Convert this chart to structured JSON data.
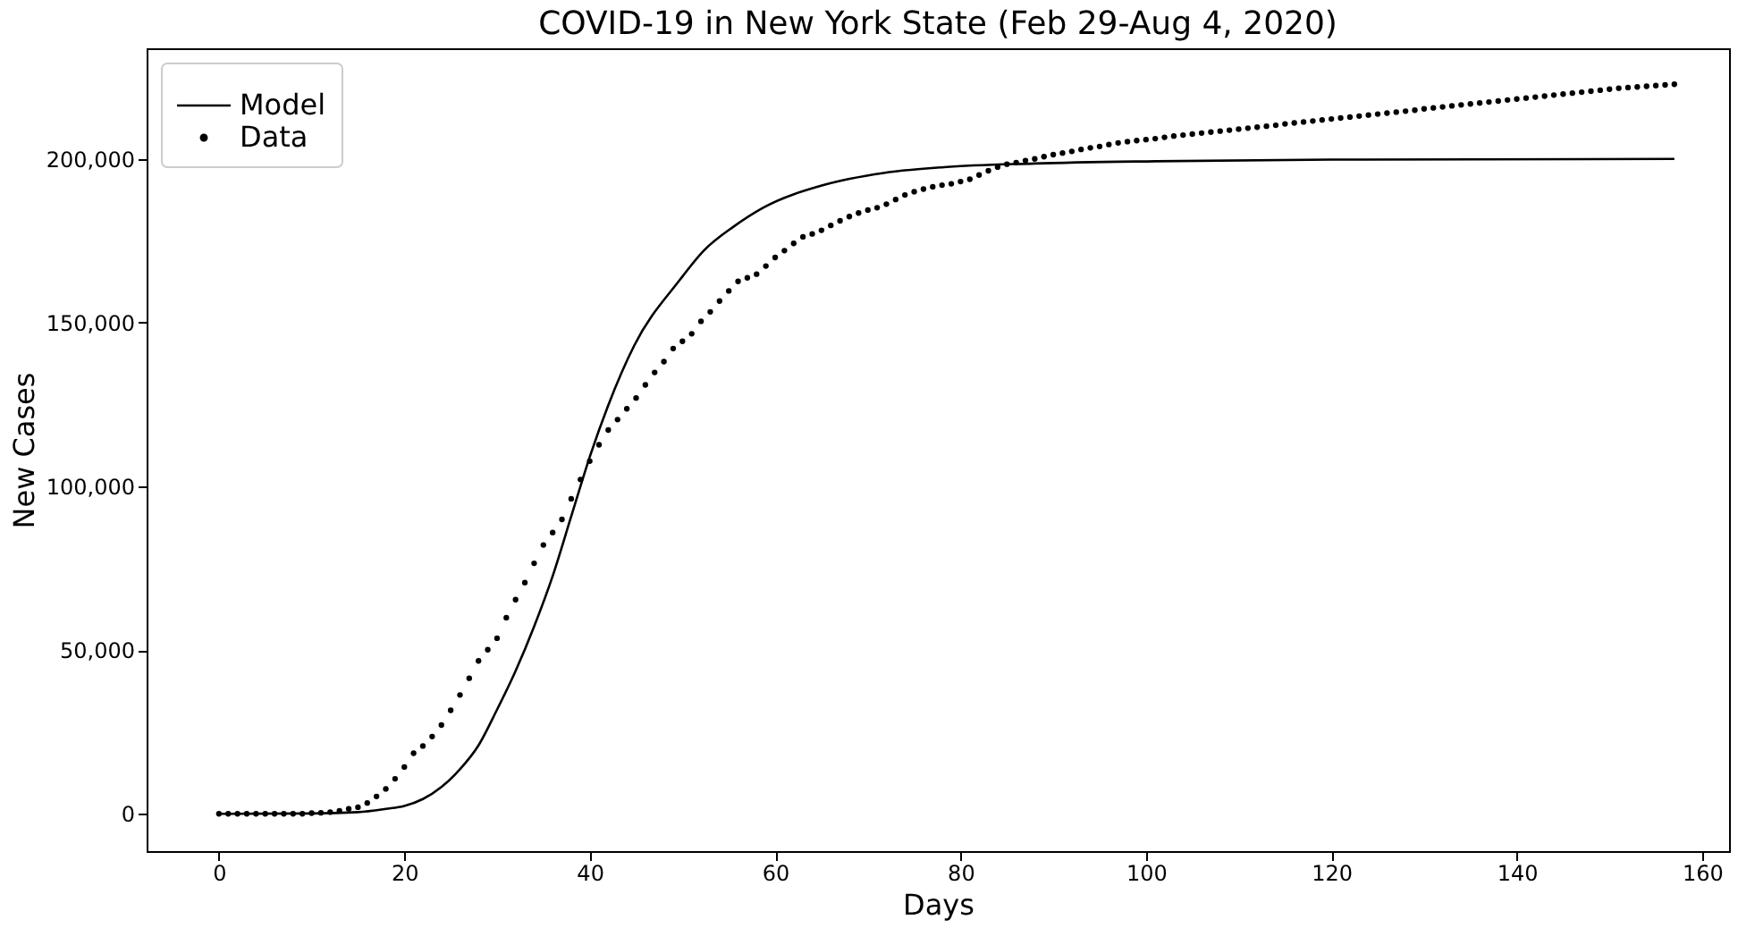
{
  "chart_data": {
    "type": "scatter",
    "title": "COVID-19 in New York State (Feb 29-Aug 4, 2020)",
    "xlabel": "Days",
    "ylabel": "New Cases",
    "xlim": [
      -7.8,
      162.9
    ],
    "ylim": [
      -11400,
      233800
    ],
    "xticks": [
      0,
      20,
      40,
      60,
      80,
      100,
      120,
      140,
      160
    ],
    "yticks": [
      {
        "value": 0,
        "label": "0"
      },
      {
        "value": 50000,
        "label": "50,000"
      },
      {
        "value": 100000,
        "label": "100,000"
      },
      {
        "value": 150000,
        "label": "150,000"
      },
      {
        "value": 200000,
        "label": "200,000"
      }
    ],
    "grid": false,
    "legend": "top left",
    "series": [
      {
        "name": "Model",
        "type": "line",
        "color": "#000000",
        "line_style": "solid",
        "x": [
          0,
          10,
          15,
          18,
          20,
          22,
          24,
          26,
          28,
          30,
          32,
          34,
          36,
          38,
          40,
          42,
          44.8,
          49.7,
          52.3,
          55.5,
          58.7,
          65.2,
          71.7,
          78.2,
          88,
          101,
          120,
          157
        ],
        "values": [
          0,
          100,
          500,
          1500,
          2400,
          4500,
          8200,
          13600,
          20900,
          31800,
          43600,
          57200,
          72600,
          90800,
          109000,
          124800,
          143000,
          163000,
          172000,
          179300,
          185100,
          192000,
          195700,
          197500,
          198600,
          199300,
          199800,
          200000
        ]
      },
      {
        "name": "Data",
        "color": "#000000",
        "marker": "circle",
        "x": [
          0,
          1,
          2,
          3,
          4,
          5,
          6,
          7,
          8,
          9,
          10,
          11,
          12,
          13,
          14,
          15,
          16,
          17,
          18,
          19,
          20,
          21,
          22,
          23,
          24,
          25,
          26,
          27,
          28,
          29,
          30,
          31,
          32,
          33,
          34,
          35,
          36,
          37,
          38,
          39,
          40,
          41,
          42,
          43,
          44,
          45,
          46,
          47,
          48,
          49,
          50,
          51,
          52,
          53,
          54,
          55,
          56,
          57,
          58,
          59,
          60,
          61,
          62,
          63,
          64,
          65,
          66,
          67,
          68,
          69,
          70,
          71,
          72,
          73,
          74,
          75,
          76,
          77,
          78,
          79,
          80,
          81,
          82,
          83,
          84,
          85,
          86,
          87,
          88,
          89,
          90,
          91,
          92,
          93,
          94,
          95,
          96,
          97,
          98,
          99,
          100,
          101,
          102,
          103,
          104,
          105,
          106,
          107,
          108,
          109,
          110,
          111,
          112,
          113,
          114,
          115,
          116,
          117,
          118,
          119,
          120,
          121,
          122,
          123,
          124,
          125,
          126,
          127,
          128,
          129,
          130,
          131,
          132,
          133,
          134,
          135,
          136,
          137,
          138,
          139,
          140,
          141,
          142,
          143,
          144,
          145,
          146,
          147,
          148,
          149,
          150,
          151,
          152,
          153,
          154,
          155,
          156,
          157
        ],
        "values": [
          0,
          0,
          0,
          0,
          0,
          0,
          0,
          0,
          0,
          0,
          200,
          300,
          500,
          900,
          1500,
          2000,
          3300,
          5300,
          7600,
          10700,
          14300,
          18500,
          20700,
          23600,
          27100,
          31600,
          36300,
          41400,
          46700,
          50100,
          53600,
          59900,
          65400,
          70600,
          76500,
          82100,
          85900,
          89900,
          96200,
          102100,
          107700,
          112700,
          117200,
          120400,
          123700,
          127000,
          131000,
          134800,
          138100,
          142100,
          144300,
          146600,
          150400,
          153300,
          156600,
          159700,
          162600,
          163700,
          164800,
          167300,
          169900,
          172000,
          174200,
          176200,
          177100,
          178200,
          179700,
          181100,
          182400,
          183500,
          184400,
          185100,
          186200,
          187600,
          189000,
          190000,
          190800,
          191500,
          192000,
          192400,
          193100,
          193800,
          195100,
          196400,
          197500,
          198400,
          198900,
          199500,
          200000,
          200700,
          201300,
          201800,
          202300,
          202900,
          203400,
          203800,
          204400,
          204900,
          205300,
          205600,
          205900,
          206200,
          206600,
          207000,
          207300,
          207600,
          207900,
          208200,
          208500,
          208800,
          209100,
          209400,
          209700,
          210000,
          210300,
          210700,
          211000,
          211300,
          211600,
          211900,
          212200,
          212500,
          212800,
          213100,
          213400,
          213700,
          214000,
          214300,
          214600,
          214900,
          215300,
          215600,
          215900,
          216200,
          216500,
          216800,
          217100,
          217400,
          217700,
          218000,
          218300,
          218600,
          218900,
          219200,
          219500,
          219800,
          220100,
          220400,
          220700,
          221000,
          221300,
          221600,
          221800,
          222000,
          222200,
          222400,
          222600,
          222800
        ]
      }
    ]
  }
}
